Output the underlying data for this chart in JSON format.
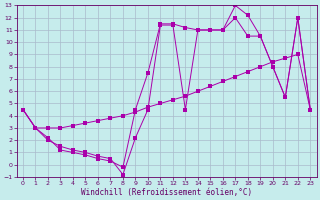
{
  "xlabel": "Windchill (Refroidissement éolien,°C)",
  "bg_color": "#c6ecec",
  "grid_color": "#aabbcc",
  "line_color": "#aa00aa",
  "xlim": [
    -0.5,
    23.5
  ],
  "ylim": [
    -1,
    13
  ],
  "xticks": [
    0,
    1,
    2,
    3,
    4,
    5,
    6,
    7,
    8,
    9,
    10,
    11,
    12,
    13,
    14,
    15,
    16,
    17,
    18,
    19,
    20,
    21,
    22,
    23
  ],
  "yticks": [
    -1,
    0,
    1,
    2,
    3,
    4,
    5,
    6,
    7,
    8,
    9,
    10,
    11,
    12,
    13
  ],
  "line1_x": [
    0,
    1,
    2,
    3,
    4,
    5,
    6,
    7,
    8,
    9,
    10,
    11,
    12,
    13,
    14,
    15,
    16,
    17,
    18,
    19,
    20,
    21,
    22,
    23
  ],
  "line1_y": [
    4.5,
    3.0,
    3.0,
    3.0,
    3.2,
    3.4,
    3.6,
    3.8,
    4.0,
    4.3,
    4.7,
    5.0,
    5.3,
    5.6,
    6.0,
    6.4,
    6.8,
    7.2,
    7.6,
    8.0,
    8.4,
    8.7,
    9.0,
    4.5
  ],
  "line2_x": [
    0,
    1,
    2,
    3,
    4,
    5,
    6,
    7,
    8,
    9,
    10,
    11,
    12,
    13,
    14,
    15,
    16,
    17,
    18,
    19,
    20,
    21,
    22,
    23
  ],
  "line2_y": [
    4.5,
    3.0,
    2.2,
    1.2,
    1.0,
    0.8,
    0.5,
    0.3,
    -0.2,
    4.5,
    7.5,
    11.5,
    11.5,
    11.2,
    11.0,
    11.0,
    11.0,
    13.0,
    12.2,
    10.5,
    8.0,
    5.5,
    12.0,
    4.5
  ],
  "line3_x": [
    0,
    1,
    2,
    3,
    4,
    5,
    6,
    7,
    8,
    9,
    10,
    11,
    12,
    13,
    14,
    15,
    16,
    17,
    18,
    19,
    20,
    21,
    22,
    23
  ],
  "line3_y": [
    4.5,
    3.0,
    2.0,
    1.5,
    1.2,
    1.0,
    0.7,
    0.5,
    -0.8,
    2.2,
    4.5,
    11.4,
    11.4,
    4.5,
    11.0,
    11.0,
    11.0,
    12.0,
    10.5,
    10.5,
    8.0,
    5.5,
    12.0,
    4.5
  ],
  "marker_size": 2.5,
  "tick_fontsize": 4.5,
  "xlabel_fontsize": 5.5
}
